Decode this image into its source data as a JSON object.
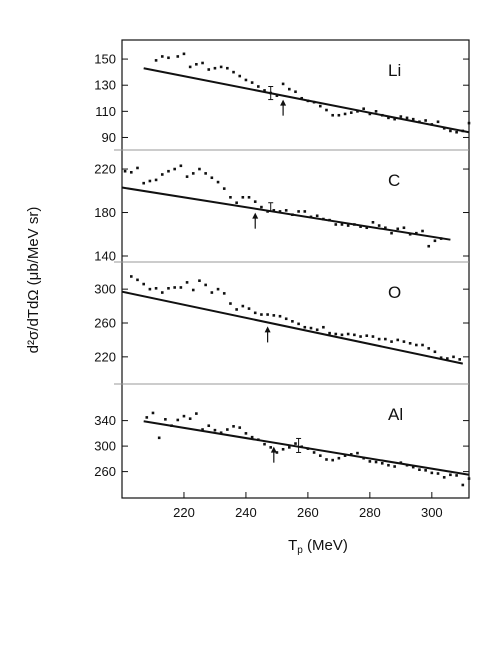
{
  "chart_data": {
    "type": "scatter",
    "layout": "stacked-panels-shared-x",
    "xlabel": "T",
    "xlabel_sub": "p",
    "xlabel_unit": " (MeV)",
    "ylabel": "d²σ/dTdΩ (μb/MeV sr)",
    "xlim": [
      200,
      312
    ],
    "xticks": [
      220,
      240,
      260,
      280,
      300
    ],
    "grid": false,
    "panels": [
      {
        "label": "Li",
        "ylim": [
          85,
          160
        ],
        "yticks": [
          90,
          110,
          130,
          150
        ],
        "points": [
          [
            211,
            149
          ],
          [
            213,
            152
          ],
          [
            215,
            151
          ],
          [
            218,
            152
          ],
          [
            220,
            154
          ],
          [
            222,
            144
          ],
          [
            224,
            146
          ],
          [
            226,
            147
          ],
          [
            228,
            142
          ],
          [
            230,
            143
          ],
          [
            232,
            144
          ],
          [
            234,
            143
          ],
          [
            236,
            140
          ],
          [
            238,
            137
          ],
          [
            240,
            134
          ],
          [
            242,
            132
          ],
          [
            244,
            129
          ],
          [
            246,
            126
          ],
          [
            248,
            124
          ],
          [
            250,
            122
          ],
          [
            252,
            131
          ],
          [
            254,
            127
          ],
          [
            256,
            125
          ],
          [
            258,
            120
          ],
          [
            260,
            118
          ],
          [
            262,
            117
          ],
          [
            264,
            114
          ],
          [
            266,
            111
          ],
          [
            268,
            107
          ],
          [
            270,
            107
          ],
          [
            272,
            108
          ],
          [
            274,
            109
          ],
          [
            276,
            110
          ],
          [
            278,
            112
          ],
          [
            280,
            108
          ],
          [
            282,
            110
          ],
          [
            284,
            107
          ],
          [
            286,
            105
          ],
          [
            288,
            104
          ],
          [
            290,
            106
          ],
          [
            292,
            105
          ],
          [
            294,
            104
          ],
          [
            296,
            102
          ],
          [
            298,
            103
          ],
          [
            300,
            100
          ],
          [
            302,
            102
          ],
          [
            304,
            97
          ],
          [
            306,
            95
          ],
          [
            308,
            94
          ],
          [
            310,
            95
          ],
          [
            312,
            101
          ]
        ],
        "fit": [
          [
            207,
            143
          ],
          [
            312,
            94
          ]
        ],
        "arrow_x": 252,
        "error_bars": [
          {
            "x": 248,
            "y": 124,
            "err": 5
          }
        ]
      },
      {
        "label": "C",
        "ylim": [
          140,
          232
        ],
        "yticks": [
          140,
          180,
          220
        ],
        "points": [
          [
            201,
            218
          ],
          [
            203,
            217
          ],
          [
            205,
            221
          ],
          [
            207,
            207
          ],
          [
            209,
            209
          ],
          [
            211,
            210
          ],
          [
            213,
            215
          ],
          [
            215,
            218
          ],
          [
            217,
            220
          ],
          [
            219,
            223
          ],
          [
            221,
            213
          ],
          [
            223,
            216
          ],
          [
            225,
            220
          ],
          [
            227,
            216
          ],
          [
            229,
            212
          ],
          [
            231,
            208
          ],
          [
            233,
            202
          ],
          [
            235,
            194
          ],
          [
            237,
            189
          ],
          [
            239,
            194
          ],
          [
            241,
            194
          ],
          [
            243,
            190
          ],
          [
            245,
            185
          ],
          [
            247,
            181
          ],
          [
            249,
            182
          ],
          [
            251,
            181
          ],
          [
            253,
            182
          ],
          [
            255,
            178
          ],
          [
            257,
            181
          ],
          [
            259,
            181
          ],
          [
            261,
            176
          ],
          [
            263,
            177
          ],
          [
            265,
            174
          ],
          [
            267,
            173
          ],
          [
            269,
            169
          ],
          [
            271,
            169
          ],
          [
            273,
            168
          ],
          [
            275,
            169
          ],
          [
            277,
            167
          ],
          [
            279,
            166
          ],
          [
            281,
            171
          ],
          [
            283,
            168
          ],
          [
            285,
            166
          ],
          [
            287,
            161
          ],
          [
            289,
            165
          ],
          [
            291,
            166
          ],
          [
            293,
            160
          ],
          [
            295,
            161
          ],
          [
            297,
            163
          ],
          [
            299,
            149
          ],
          [
            301,
            154
          ],
          [
            303,
            156
          ]
        ],
        "fit": [
          [
            200,
            203
          ],
          [
            306,
            155
          ]
        ],
        "arrow_x": 243,
        "error_bars": [
          {
            "x": 248,
            "y": 185,
            "err": 4
          }
        ]
      },
      {
        "label": "O",
        "ylim": [
          195,
          325
        ],
        "yticks": [
          220,
          260,
          300
        ],
        "points": [
          [
            203,
            315
          ],
          [
            205,
            311
          ],
          [
            207,
            306
          ],
          [
            209,
            300
          ],
          [
            211,
            301
          ],
          [
            213,
            296
          ],
          [
            215,
            301
          ],
          [
            217,
            302
          ],
          [
            219,
            302
          ],
          [
            221,
            308
          ],
          [
            223,
            299
          ],
          [
            225,
            310
          ],
          [
            227,
            305
          ],
          [
            229,
            296
          ],
          [
            231,
            300
          ],
          [
            233,
            295
          ],
          [
            235,
            283
          ],
          [
            237,
            276
          ],
          [
            239,
            280
          ],
          [
            241,
            277
          ],
          [
            243,
            272
          ],
          [
            245,
            270
          ],
          [
            247,
            270
          ],
          [
            249,
            269
          ],
          [
            251,
            268
          ],
          [
            253,
            265
          ],
          [
            255,
            262
          ],
          [
            257,
            259
          ],
          [
            259,
            255
          ],
          [
            261,
            254
          ],
          [
            263,
            252
          ],
          [
            265,
            255
          ],
          [
            267,
            248
          ],
          [
            269,
            247
          ],
          [
            271,
            246
          ],
          [
            273,
            247
          ],
          [
            275,
            246
          ],
          [
            277,
            244
          ],
          [
            279,
            245
          ],
          [
            281,
            244
          ],
          [
            283,
            241
          ],
          [
            285,
            241
          ],
          [
            287,
            238
          ],
          [
            289,
            240
          ],
          [
            291,
            238
          ],
          [
            293,
            236
          ],
          [
            295,
            234
          ],
          [
            297,
            234
          ],
          [
            299,
            230
          ],
          [
            301,
            226
          ],
          [
            303,
            219
          ],
          [
            305,
            218
          ],
          [
            307,
            220
          ],
          [
            309,
            217
          ]
        ],
        "fit": [
          [
            200,
            297
          ],
          [
            310,
            212
          ]
        ],
        "arrow_x": 247,
        "error_bars": []
      },
      {
        "label": "Al",
        "ylim": [
          228,
          388
        ],
        "yticks": [
          260,
          300,
          340
        ],
        "points": [
          [
            208,
            345
          ],
          [
            210,
            352
          ],
          [
            212,
            313
          ],
          [
            214,
            342
          ],
          [
            216,
            332
          ],
          [
            218,
            341
          ],
          [
            220,
            347
          ],
          [
            222,
            343
          ],
          [
            224,
            351
          ],
          [
            226,
            326
          ],
          [
            228,
            332
          ],
          [
            230,
            325
          ],
          [
            232,
            321
          ],
          [
            234,
            326
          ],
          [
            236,
            331
          ],
          [
            238,
            329
          ],
          [
            240,
            320
          ],
          [
            242,
            314
          ],
          [
            244,
            310
          ],
          [
            246,
            303
          ],
          [
            248,
            298
          ],
          [
            250,
            290
          ],
          [
            252,
            295
          ],
          [
            254,
            298
          ],
          [
            256,
            304
          ],
          [
            258,
            299
          ],
          [
            260,
            296
          ],
          [
            262,
            290
          ],
          [
            264,
            285
          ],
          [
            266,
            279
          ],
          [
            268,
            278
          ],
          [
            270,
            281
          ],
          [
            272,
            285
          ],
          [
            274,
            287
          ],
          [
            276,
            289
          ],
          [
            278,
            281
          ],
          [
            280,
            276
          ],
          [
            282,
            275
          ],
          [
            284,
            273
          ],
          [
            286,
            270
          ],
          [
            288,
            268
          ],
          [
            290,
            274
          ],
          [
            292,
            270
          ],
          [
            294,
            267
          ],
          [
            296,
            263
          ],
          [
            298,
            262
          ],
          [
            300,
            258
          ],
          [
            302,
            257
          ],
          [
            304,
            251
          ],
          [
            306,
            255
          ],
          [
            308,
            254
          ],
          [
            310,
            239
          ],
          [
            312,
            249
          ]
        ],
        "fit": [
          [
            207,
            339
          ],
          [
            312,
            255
          ]
        ],
        "arrow_x": 249,
        "error_bars": [
          {
            "x": 257,
            "y": 301,
            "err": 11
          }
        ]
      }
    ]
  }
}
